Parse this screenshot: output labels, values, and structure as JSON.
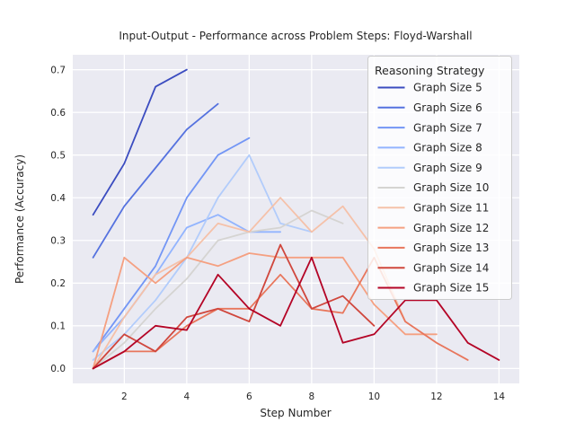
{
  "title": "Input-Output - Performance across Problem Steps: Floyd-Warshall",
  "legend": {
    "title": "Reasoning Strategy"
  },
  "chart_data": {
    "type": "line",
    "title": "Input-Output - Performance across Problem Steps: Floyd-Warshall",
    "xlabel": "Step Number",
    "ylabel": "Performance (Accuracy)",
    "x_ticks": [
      2,
      4,
      6,
      8,
      10,
      12,
      14
    ],
    "y_ticks": [
      0.0,
      0.1,
      0.2,
      0.3,
      0.4,
      0.5,
      0.6,
      0.7
    ],
    "xlim": [
      0.35,
      14.65
    ],
    "ylim": [
      -0.035,
      0.735
    ],
    "grid": true,
    "legend_position": "upper right",
    "legend_title": "Reasoning Strategy",
    "x_start": 1,
    "series": [
      {
        "name": "Graph Size 5",
        "color": "#3b4cc0",
        "values": [
          0.36,
          0.48,
          0.66,
          0.7
        ]
      },
      {
        "name": "Graph Size 6",
        "color": "#5572df",
        "values": [
          0.26,
          0.38,
          0.47,
          0.56,
          0.62
        ]
      },
      {
        "name": "Graph Size 7",
        "color": "#7396f5",
        "values": [
          0.04,
          0.14,
          0.24,
          0.4,
          0.5,
          0.54
        ]
      },
      {
        "name": "Graph Size 8",
        "color": "#92b4fe",
        "values": [
          0.04,
          0.12,
          0.22,
          0.33,
          0.36,
          0.32,
          0.32
        ]
      },
      {
        "name": "Graph Size 9",
        "color": "#b2ccfb",
        "values": [
          0.02,
          0.08,
          0.16,
          0.26,
          0.4,
          0.5,
          0.34,
          0.32
        ]
      },
      {
        "name": "Graph Size 10",
        "color": "#d5d4d2",
        "values": [
          0.0,
          0.06,
          0.14,
          0.21,
          0.3,
          0.32,
          0.33,
          0.37,
          0.34
        ]
      },
      {
        "name": "Graph Size 11",
        "color": "#f5c1a9",
        "values": [
          0.0,
          0.12,
          0.22,
          0.26,
          0.34,
          0.32,
          0.4,
          0.32,
          0.38,
          0.28,
          0.11
        ]
      },
      {
        "name": "Graph Size 12",
        "color": "#f5a081",
        "values": [
          0.0,
          0.26,
          0.2,
          0.26,
          0.24,
          0.27,
          0.26,
          0.26,
          0.26,
          0.15,
          0.08,
          0.08
        ]
      },
      {
        "name": "Graph Size 13",
        "color": "#e8765c",
        "values": [
          0.0,
          0.04,
          0.04,
          0.1,
          0.14,
          0.14,
          0.22,
          0.14,
          0.13,
          0.26,
          0.11,
          0.06,
          0.02
        ]
      },
      {
        "name": "Graph Size 14",
        "color": "#d0473d",
        "values": [
          0.0,
          0.08,
          0.04,
          0.12,
          0.14,
          0.11,
          0.29,
          0.14,
          0.17,
          0.1
        ]
      },
      {
        "name": "Graph Size 15",
        "color": "#b40426",
        "values": [
          0.0,
          0.04,
          0.1,
          0.09,
          0.22,
          0.14,
          0.1,
          0.26,
          0.06,
          0.08,
          0.16,
          0.16,
          0.06,
          0.02
        ]
      }
    ]
  }
}
